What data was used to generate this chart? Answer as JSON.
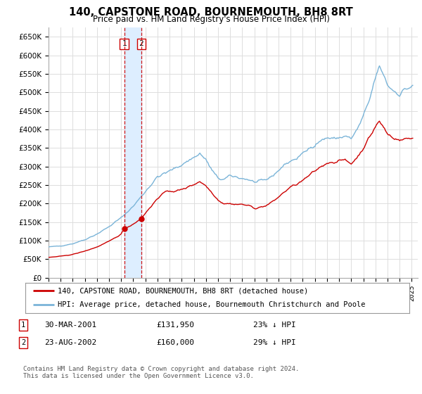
{
  "title": "140, CAPSTONE ROAD, BOURNEMOUTH, BH8 8RT",
  "subtitle": "Price paid vs. HM Land Registry's House Price Index (HPI)",
  "ylabel_ticks": [
    "£0",
    "£50K",
    "£100K",
    "£150K",
    "£200K",
    "£250K",
    "£300K",
    "£350K",
    "£400K",
    "£450K",
    "£500K",
    "£550K",
    "£600K",
    "£650K"
  ],
  "ytick_values": [
    0,
    50000,
    100000,
    150000,
    200000,
    250000,
    300000,
    350000,
    400000,
    450000,
    500000,
    550000,
    600000,
    650000
  ],
  "hpi_color": "#7ab4d8",
  "price_color": "#cc0000",
  "vline_color": "#cc0000",
  "shade_color": "#ddeeff",
  "grid_color": "#dddddd",
  "background_color": "#ffffff",
  "plot_bg_color": "#ffffff",
  "legend1_label": "140, CAPSTONE ROAD, BOURNEMOUTH, BH8 8RT (detached house)",
  "legend2_label": "HPI: Average price, detached house, Bournemouth Christchurch and Poole",
  "transaction1_date": "30-MAR-2001",
  "transaction1_price": "£131,950",
  "transaction1_pct": "23% ↓ HPI",
  "transaction2_date": "23-AUG-2002",
  "transaction2_price": "£160,000",
  "transaction2_pct": "29% ↓ HPI",
  "footer": "Contains HM Land Registry data © Crown copyright and database right 2024.\nThis data is licensed under the Open Government Licence v3.0.",
  "vline1_x": 2001.25,
  "vline2_x": 2002.65,
  "sale1_x": 2001.25,
  "sale1_y": 131950,
  "sale2_x": 2002.65,
  "sale2_y": 160000,
  "xlim": [
    1995.0,
    2025.5
  ],
  "ylim": [
    0,
    675000
  ]
}
